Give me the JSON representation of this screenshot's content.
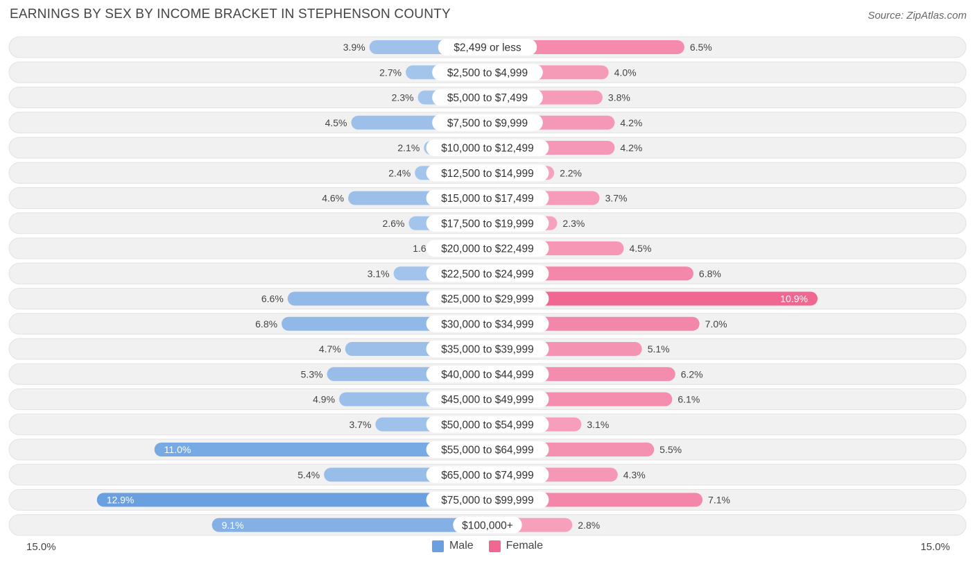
{
  "title": "EARNINGS BY SEX BY INCOME BRACKET IN STEPHENSON COUNTY",
  "source": "Source: ZipAtlas.com",
  "axis": {
    "left_label": "15.0%",
    "right_label": "15.0%"
  },
  "legend": {
    "male_label": "Male",
    "female_label": "Female"
  },
  "colors": {
    "male_light": "#a9c8ec",
    "male_dark": "#6aa0e0",
    "female_light": "#f7a8c2",
    "female_dark": "#f06792",
    "row_bg": "#f1f1f1"
  },
  "chart_data": {
    "type": "bar",
    "orientation": "horizontal-diverging",
    "title": "EARNINGS BY SEX BY INCOME BRACKET IN STEPHENSON COUNTY",
    "xlim": [
      -15,
      15
    ],
    "categories": [
      "$2,499 or less",
      "$2,500 to $4,999",
      "$5,000 to $7,499",
      "$7,500 to $9,999",
      "$10,000 to $12,499",
      "$12,500 to $14,999",
      "$15,000 to $17,499",
      "$17,500 to $19,999",
      "$20,000 to $22,499",
      "$22,500 to $24,999",
      "$25,000 to $29,999",
      "$30,000 to $34,999",
      "$35,000 to $39,999",
      "$40,000 to $44,999",
      "$45,000 to $49,999",
      "$50,000 to $54,999",
      "$55,000 to $64,999",
      "$65,000 to $74,999",
      "$75,000 to $99,999",
      "$100,000+"
    ],
    "series": [
      {
        "name": "Male",
        "values": [
          3.9,
          2.7,
          2.3,
          4.5,
          2.1,
          2.4,
          4.6,
          2.6,
          1.6,
          3.1,
          6.6,
          6.8,
          4.7,
          5.3,
          4.9,
          3.7,
          11.0,
          5.4,
          12.9,
          9.1
        ],
        "labels": [
          "3.9%",
          "2.7%",
          "2.3%",
          "4.5%",
          "2.1%",
          "2.4%",
          "4.6%",
          "2.6%",
          "1.6%",
          "3.1%",
          "6.6%",
          "6.8%",
          "4.7%",
          "5.3%",
          "4.9%",
          "3.7%",
          "11.0%",
          "5.4%",
          "12.9%",
          "9.1%"
        ]
      },
      {
        "name": "Female",
        "values": [
          6.5,
          4.0,
          3.8,
          4.2,
          4.2,
          2.2,
          3.7,
          2.3,
          4.5,
          6.8,
          10.9,
          7.0,
          5.1,
          6.2,
          6.1,
          3.1,
          5.5,
          4.3,
          7.1,
          2.8
        ],
        "labels": [
          "6.5%",
          "4.0%",
          "3.8%",
          "4.2%",
          "4.2%",
          "2.2%",
          "3.7%",
          "2.3%",
          "4.5%",
          "6.8%",
          "10.9%",
          "7.0%",
          "5.1%",
          "6.2%",
          "6.1%",
          "3.1%",
          "5.5%",
          "4.3%",
          "7.1%",
          "2.8%"
        ]
      }
    ]
  }
}
